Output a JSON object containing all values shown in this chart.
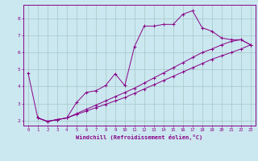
{
  "xlabel": "Windchill (Refroidissement éolien,°C)",
  "background_color": "#cbe8f0",
  "grid_color": "#aacccc",
  "line_color": "#880088",
  "xlim": [
    -0.5,
    23.5
  ],
  "ylim": [
    1.7,
    8.8
  ],
  "xticks": [
    0,
    1,
    2,
    3,
    4,
    5,
    6,
    7,
    8,
    9,
    10,
    11,
    12,
    13,
    14,
    15,
    16,
    17,
    18,
    19,
    20,
    21,
    22,
    23
  ],
  "yticks": [
    2,
    3,
    4,
    5,
    6,
    7,
    8
  ],
  "line1_x": [
    0,
    1,
    2,
    3,
    4,
    5,
    6,
    7,
    8,
    9,
    10,
    11,
    12,
    13,
    14,
    15,
    16,
    17,
    18,
    19,
    20,
    21,
    22,
    23
  ],
  "line1_y": [
    4.8,
    2.15,
    1.95,
    2.05,
    2.15,
    3.05,
    3.65,
    3.75,
    4.05,
    4.75,
    4.05,
    6.35,
    7.55,
    7.55,
    7.65,
    7.65,
    8.25,
    8.45,
    7.45,
    7.25,
    6.85,
    6.75,
    6.75,
    6.45
  ],
  "line2_x": [
    1,
    2,
    3,
    4,
    5,
    6,
    7,
    8,
    9,
    10,
    11,
    12,
    13,
    14,
    15,
    16,
    17,
    18,
    19,
    20,
    21,
    22,
    23
  ],
  "line2_y": [
    2.15,
    1.95,
    2.05,
    2.15,
    2.4,
    2.65,
    2.9,
    3.15,
    3.4,
    3.65,
    3.9,
    4.2,
    4.5,
    4.8,
    5.1,
    5.4,
    5.7,
    6.0,
    6.2,
    6.45,
    6.65,
    6.75,
    6.45
  ],
  "line3_x": [
    1,
    2,
    3,
    4,
    5,
    6,
    7,
    8,
    9,
    10,
    11,
    12,
    13,
    14,
    15,
    16,
    17,
    18,
    19,
    20,
    21,
    22,
    23
  ],
  "line3_y": [
    2.15,
    1.95,
    2.05,
    2.15,
    2.35,
    2.55,
    2.75,
    2.95,
    3.15,
    3.35,
    3.6,
    3.85,
    4.1,
    4.35,
    4.6,
    4.85,
    5.1,
    5.35,
    5.6,
    5.8,
    6.0,
    6.2,
    6.45
  ]
}
